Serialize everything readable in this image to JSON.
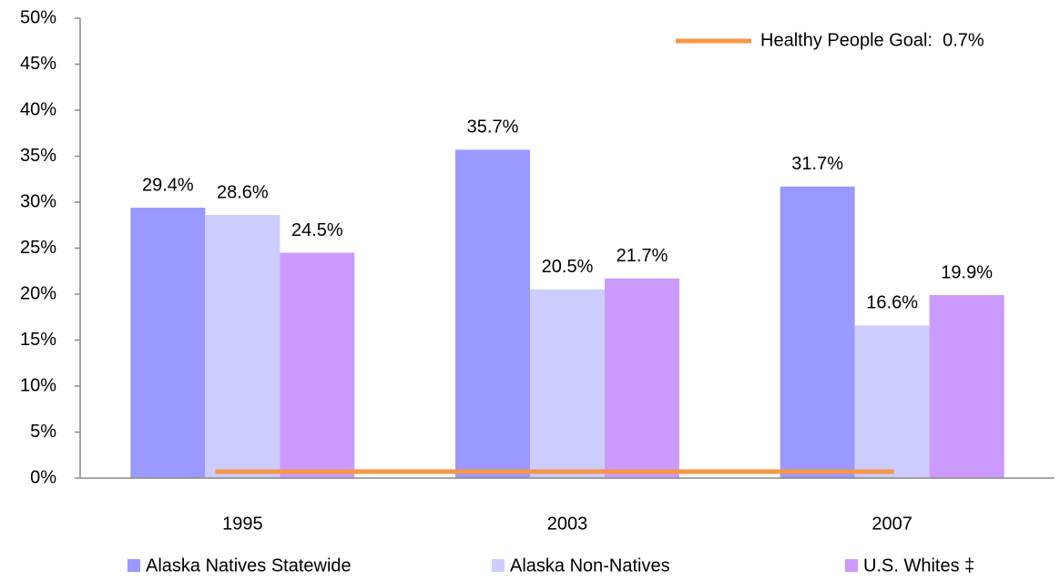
{
  "chart_data": {
    "type": "bar",
    "categories": [
      "1995",
      "2003",
      "2007"
    ],
    "series": [
      {
        "name": "Alaska Natives Statewide",
        "color": "#9999ff",
        "values": [
          29.4,
          35.7,
          31.7
        ],
        "value_labels": [
          "29.4%",
          "35.7%",
          "31.7%"
        ]
      },
      {
        "name": "Alaska Non-Natives",
        "color": "#ccccff",
        "values": [
          28.6,
          20.5,
          16.6
        ],
        "value_labels": [
          "28.6%",
          "20.5%",
          "16.6%"
        ]
      },
      {
        "name": "U.S. Whites ‡",
        "color": "#cc99ff",
        "values": [
          24.5,
          21.7,
          19.9
        ],
        "value_labels": [
          "24.5%",
          "21.7%",
          "19.9%"
        ]
      }
    ],
    "goal": {
      "name": "Healthy People Goal:  0.7%",
      "value": 0.7,
      "color": "#f79646"
    },
    "ylim": [
      0,
      50
    ],
    "yticks": [
      {
        "value": 0,
        "label": "0%"
      },
      {
        "value": 5,
        "label": "5%"
      },
      {
        "value": 10,
        "label": "10%"
      },
      {
        "value": 15,
        "label": "15%"
      },
      {
        "value": 20,
        "label": "20%"
      },
      {
        "value": 25,
        "label": "25%"
      },
      {
        "value": 30,
        "label": "30%"
      },
      {
        "value": 35,
        "label": "35%"
      },
      {
        "value": 40,
        "label": "40%"
      },
      {
        "value": 45,
        "label": "45%"
      },
      {
        "value": 50,
        "label": "50%"
      }
    ]
  }
}
